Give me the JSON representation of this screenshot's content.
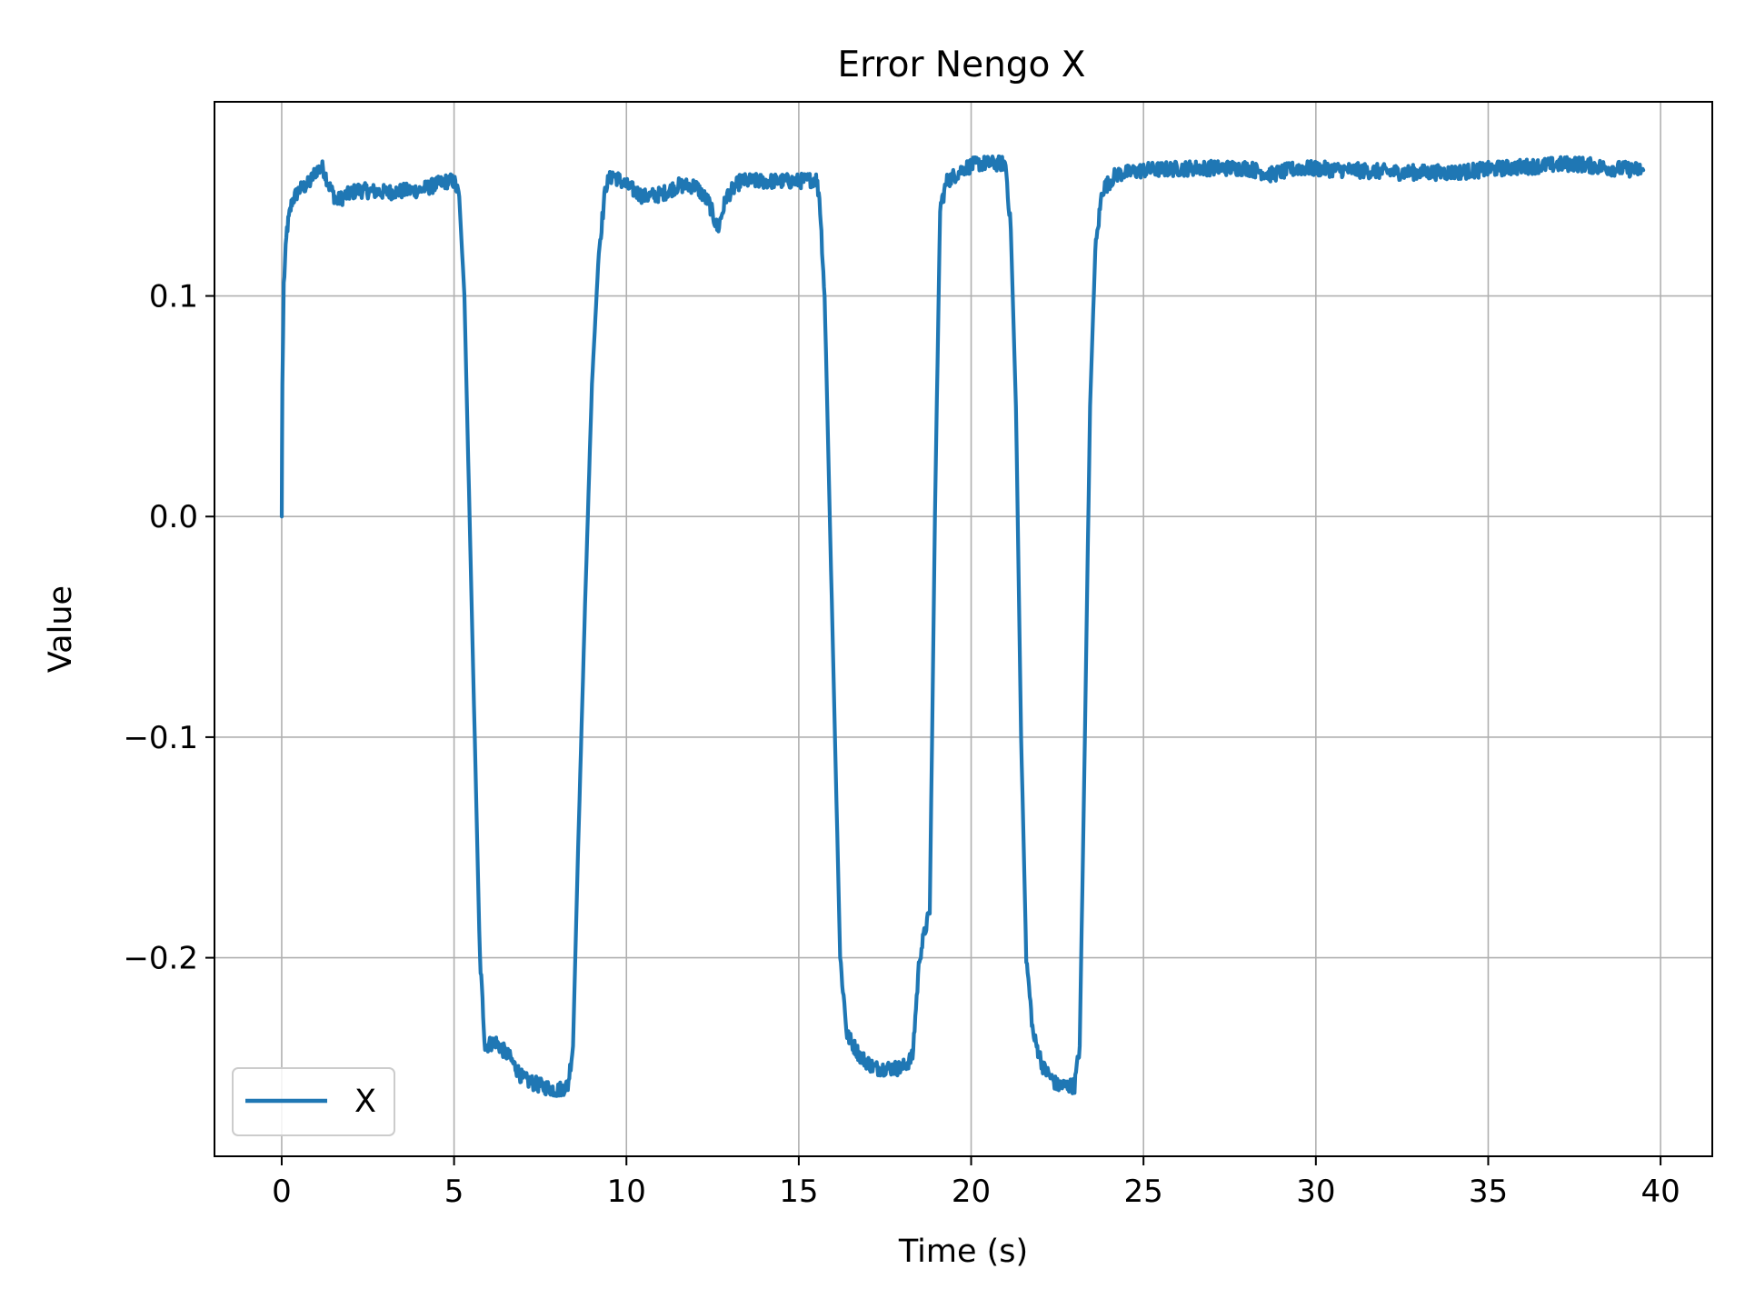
{
  "chart_data": {
    "type": "line",
    "title": "Error Nengo X",
    "xlabel": "Time (s)",
    "ylabel": "Value",
    "xlim": [
      -1.95,
      41.5
    ],
    "ylim": [
      -0.29,
      0.188
    ],
    "grid": true,
    "legend": "lower-left",
    "x_ticks": [
      0,
      5,
      10,
      15,
      20,
      25,
      30,
      35,
      40
    ],
    "x_tick_labels": [
      "0",
      "5",
      "10",
      "15",
      "20",
      "25",
      "30",
      "35",
      "40"
    ],
    "y_ticks": [
      0.1,
      0.0,
      -0.1,
      -0.2
    ],
    "y_tick_labels": [
      "0.1",
      "0.0",
      "−0.1",
      "−0.2"
    ],
    "series": [
      {
        "name": "X",
        "color": "#1f77b4",
        "noise": 0.0035,
        "points": [
          [
            0.0,
            0.0
          ],
          [
            0.02,
            0.06
          ],
          [
            0.06,
            0.105
          ],
          [
            0.15,
            0.13
          ],
          [
            0.3,
            0.143
          ],
          [
            0.5,
            0.148
          ],
          [
            0.8,
            0.151
          ],
          [
            1.0,
            0.157
          ],
          [
            1.2,
            0.158
          ],
          [
            1.4,
            0.149
          ],
          [
            1.6,
            0.143
          ],
          [
            1.8,
            0.145
          ],
          [
            2.2,
            0.148
          ],
          [
            3.0,
            0.147
          ],
          [
            4.0,
            0.148
          ],
          [
            4.8,
            0.152
          ],
          [
            5.0,
            0.152
          ],
          [
            5.15,
            0.145
          ],
          [
            5.3,
            0.1
          ],
          [
            5.45,
            0.0
          ],
          [
            5.6,
            -0.1
          ],
          [
            5.75,
            -0.2
          ],
          [
            5.9,
            -0.24
          ],
          [
            6.2,
            -0.238
          ],
          [
            6.6,
            -0.245
          ],
          [
            7.0,
            -0.255
          ],
          [
            7.5,
            -0.258
          ],
          [
            8.0,
            -0.26
          ],
          [
            8.3,
            -0.258
          ],
          [
            8.45,
            -0.24
          ],
          [
            8.6,
            -0.15
          ],
          [
            8.8,
            -0.04
          ],
          [
            9.0,
            0.06
          ],
          [
            9.2,
            0.12
          ],
          [
            9.4,
            0.15
          ],
          [
            9.6,
            0.155
          ],
          [
            10.0,
            0.15
          ],
          [
            10.5,
            0.145
          ],
          [
            11.0,
            0.146
          ],
          [
            11.5,
            0.15
          ],
          [
            12.0,
            0.15
          ],
          [
            12.4,
            0.142
          ],
          [
            12.65,
            0.13
          ],
          [
            12.9,
            0.145
          ],
          [
            13.3,
            0.152
          ],
          [
            14.0,
            0.152
          ],
          [
            14.5,
            0.152
          ],
          [
            15.0,
            0.152
          ],
          [
            15.5,
            0.153
          ],
          [
            15.6,
            0.145
          ],
          [
            15.75,
            0.1
          ],
          [
            15.9,
            0.0
          ],
          [
            16.05,
            -0.1
          ],
          [
            16.2,
            -0.2
          ],
          [
            16.4,
            -0.235
          ],
          [
            16.8,
            -0.245
          ],
          [
            17.2,
            -0.25
          ],
          [
            18.0,
            -0.25
          ],
          [
            18.3,
            -0.245
          ],
          [
            18.5,
            -0.2
          ],
          [
            18.7,
            -0.185
          ],
          [
            18.8,
            -0.18
          ],
          [
            18.95,
            0.0
          ],
          [
            19.1,
            0.14
          ],
          [
            19.3,
            0.152
          ],
          [
            19.8,
            0.158
          ],
          [
            20.2,
            0.16
          ],
          [
            20.8,
            0.16
          ],
          [
            21.0,
            0.16
          ],
          [
            21.15,
            0.13
          ],
          [
            21.3,
            0.05
          ],
          [
            21.45,
            -0.1
          ],
          [
            21.6,
            -0.2
          ],
          [
            21.8,
            -0.235
          ],
          [
            22.1,
            -0.25
          ],
          [
            22.5,
            -0.258
          ],
          [
            23.0,
            -0.258
          ],
          [
            23.15,
            -0.24
          ],
          [
            23.3,
            -0.1
          ],
          [
            23.45,
            0.05
          ],
          [
            23.6,
            0.12
          ],
          [
            23.8,
            0.148
          ],
          [
            24.2,
            0.155
          ],
          [
            25.0,
            0.157
          ],
          [
            26.5,
            0.158
          ],
          [
            27.0,
            0.158
          ],
          [
            28.0,
            0.158
          ],
          [
            28.7,
            0.155
          ],
          [
            29.5,
            0.158
          ],
          [
            31.0,
            0.157
          ],
          [
            32.5,
            0.156
          ],
          [
            34.0,
            0.156
          ],
          [
            35.5,
            0.158
          ],
          [
            36.5,
            0.159
          ],
          [
            37.5,
            0.16
          ],
          [
            38.5,
            0.158
          ],
          [
            39.5,
            0.157
          ]
        ]
      }
    ]
  }
}
